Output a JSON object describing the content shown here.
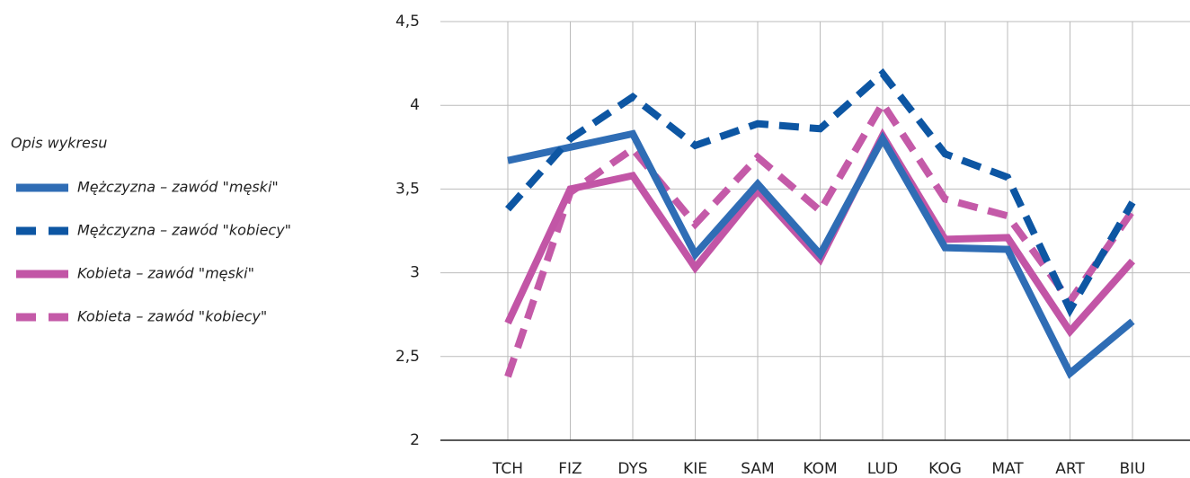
{
  "chart_data": {
    "type": "line",
    "legend_title": "Opis wykresu",
    "categories": [
      "TCH",
      "FIZ",
      "DYS",
      "KIE",
      "SAM",
      "KOM",
      "LUD",
      "KOG",
      "MAT",
      "ART",
      "BIU"
    ],
    "series": [
      {
        "name": "Mężczyzna – zawód \"męski\"",
        "color": "#2f6db5",
        "dashed": false,
        "values": [
          3.67,
          3.75,
          3.83,
          3.11,
          3.53,
          3.11,
          3.8,
          3.15,
          3.14,
          2.4,
          2.71
        ]
      },
      {
        "name": "Mężczyzna – zawód \"kobiecy\"",
        "color": "#0d56a3",
        "dashed": true,
        "values": [
          3.38,
          3.8,
          4.05,
          3.76,
          3.89,
          3.86,
          4.19,
          3.71,
          3.57,
          2.78,
          3.42
        ]
      },
      {
        "name": "Kobieta – zawód \"męski\"",
        "color": "#c255a6",
        "dashed": false,
        "values": [
          2.7,
          3.5,
          3.58,
          3.03,
          3.49,
          3.08,
          3.82,
          3.2,
          3.21,
          2.65,
          3.07
        ]
      },
      {
        "name": "Kobieta – zawód \"kobiecy\"",
        "color": "#c45aa8",
        "dashed": true,
        "values": [
          2.38,
          3.48,
          3.74,
          3.29,
          3.69,
          3.37,
          4.01,
          3.44,
          3.34,
          2.83,
          3.37
        ]
      }
    ],
    "ylim": [
      2,
      4.5
    ],
    "yticks": [
      2,
      {
        "value": 2.5,
        "label": "2,5"
      },
      3,
      {
        "value": 3.5,
        "label": "3,5"
      },
      4,
      {
        "value": 4.5,
        "label": "4,5"
      }
    ],
    "grid": true
  }
}
